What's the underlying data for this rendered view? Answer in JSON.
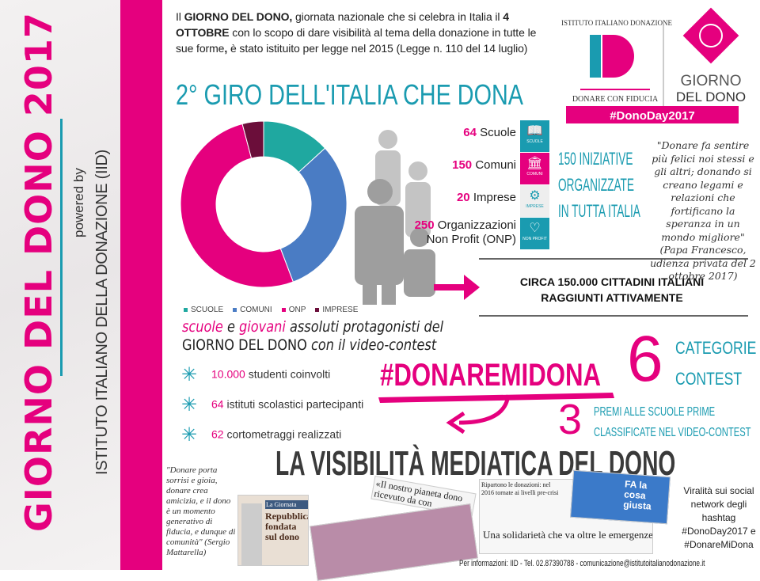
{
  "sidebar": {
    "title": "GIORNO DEL DONO 2017",
    "powered_by": "powered by",
    "institute": "ISTITUTO ITALIANO DELLA DONAZIONE (IID)"
  },
  "intro": {
    "p1": "Il ",
    "b1": "GIORNO DEL DONO,",
    "p2": " giornata nazionale che si celebra in Italia il ",
    "b2": "4 OTTOBRE",
    "p3": " con lo scopo di dare visibilità al tema della donazione in tutte le sue forme",
    "b3": ",",
    "p4": " è stato istituito per legge nel 2015 (Legge n. 110 del 14 luglio)"
  },
  "headline": "2° GIRO DELL'ITALIA CHE DONA",
  "logo": {
    "arc_text": "ISTITUTO ITALIANO DONAZIONE",
    "letters": "ID",
    "tagline": "DONARE CON FIDUCIA",
    "brand1": "GIORNO",
    "brand2": "DEL DONO",
    "hashtag": "#DonoDay2017"
  },
  "chart_data": {
    "type": "pie",
    "donut": true,
    "legend_position": "bottom",
    "categories": [
      "SCUOLE",
      "COMUNI",
      "ONP",
      "IMPRESE"
    ],
    "values": [
      64,
      150,
      250,
      20
    ],
    "colors": [
      "#1fa8a0",
      "#4a7cc4",
      "#e5007e",
      "#6b0e3a"
    ]
  },
  "stats": [
    {
      "num": "64",
      "label": "Scuole",
      "icon": "book-icon",
      "icon_label": "SCUOLE",
      "color": "#1a9bb0"
    },
    {
      "num": "150",
      "label": "Comuni",
      "icon": "building-icon",
      "icon_label": "COMUNI",
      "color": "#e5007e"
    },
    {
      "num": "20",
      "label": "Imprese",
      "icon": "gears-icon",
      "icon_label": "IMPRESE",
      "color": "#eeeeee"
    },
    {
      "num": "250",
      "label": "Organizzazioni",
      "label2": "Non Profit (ONP)",
      "icon": "heart-icon",
      "icon_label": "NON PROFIT",
      "color": "#1a9bb0"
    }
  ],
  "iniziative": [
    "150 INIZIATIVE",
    "ORGANIZZATE",
    "IN TUTTA ITALIA"
  ],
  "quote_pope": "\"Donare fa sentire più felici noi stessi e gli altri; donando si creano legami e relazioni che fortificano la speranza in un mondo migliore\" (Papa Francesco, udienza privata del 2 ottobre 2017)",
  "citizens": [
    "CIRCA 150.000 CITTADINI ITALIANI",
    "RAGGIUNTI ATTIVAMENTE"
  ],
  "schools": {
    "w1": "scuole",
    "w2": " e ",
    "w3": "giovani",
    "w4": " assoluti protagonisti del",
    "line2a": "GIORNO DEL DONO",
    "line2b": " con il video-contest"
  },
  "bullets": [
    {
      "num": "10.000",
      "text": " studenti coinvolti"
    },
    {
      "num": "64",
      "text": " istituti scolastici partecipanti"
    },
    {
      "num": "62",
      "text": " cortometraggi realizzati"
    }
  ],
  "contest": {
    "hashtag": "#DONAREMIDONA",
    "six": "6",
    "categories": [
      "CATEGORIE",
      "CONTEST"
    ],
    "three": "3",
    "prizes": [
      "PREMI ALLE SCUOLE PRIME",
      "CLASSIFICATE NEL VIDEO-CONTEST"
    ]
  },
  "media": {
    "title": "LA VISIBILITÀ MEDIATICA DEL DONO",
    "quote": "\"Donare porta sorrisi e gioia, donare crea amicizia, e il dono è un momento generativo di fiducia, e dunque di comunità\" (Sergio Mattarella)",
    "clip1_kicker": "La Giornata",
    "clip1_head": "Repubblica fondata sul dono",
    "clip2_head": "«Il nostro pianeta dono ricevuto da con",
    "clip3_top": "Ripartono le donazioni: nel 2016 tornate ai livelli pre-crisi",
    "clip3_head": "Una solidarietà che va oltre le emergenze",
    "clip4_text": "FA la cosa giusta",
    "virality": "Viralità sui social network degli hashtag #DonoDay2017 e #DonareMiDona",
    "footer": "Per informazioni: IID - Tel. 02.87390788 - comunicazione@istitutoitalianodonazione.it"
  },
  "colors": {
    "pink": "#e5007e",
    "teal": "#1a9bb0",
    "gray": "#bdbdbd"
  }
}
